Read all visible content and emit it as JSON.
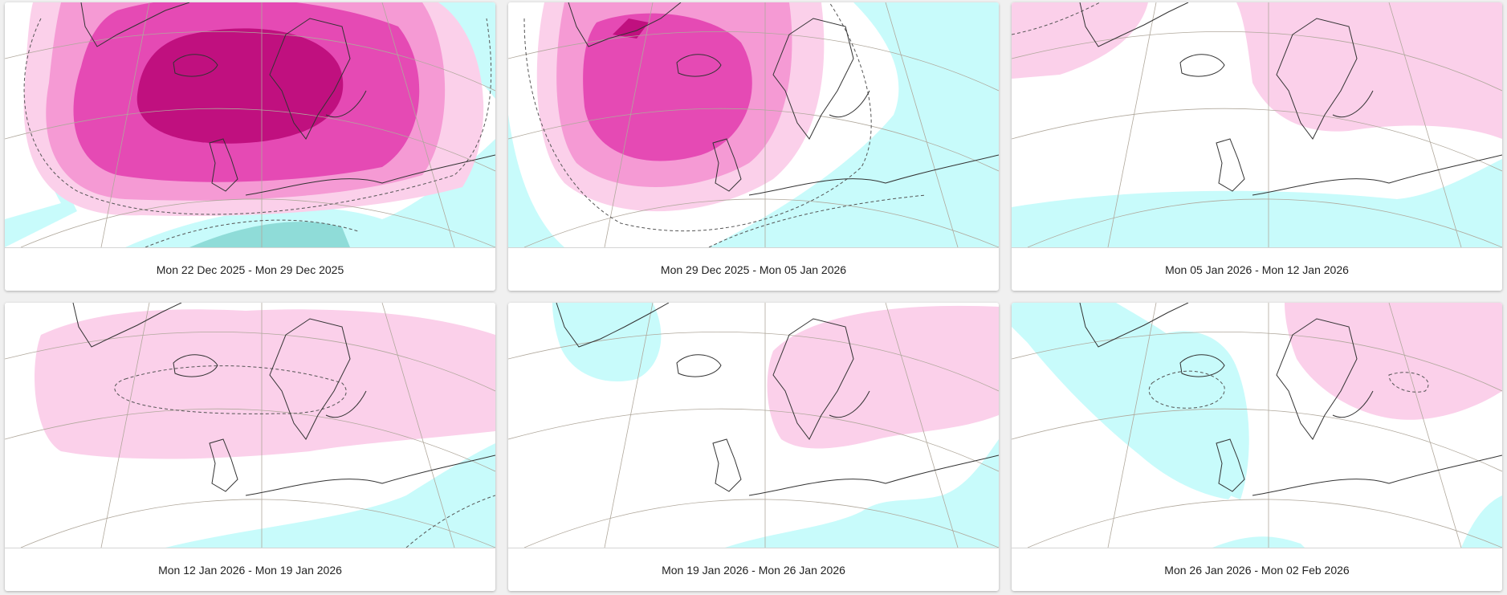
{
  "panels": [
    {
      "label": "Mon 22 Dec 2025 - Mon 29 Dec 2025"
    },
    {
      "label": "Mon 29 Dec 2025 - Mon 05 Jan 2026"
    },
    {
      "label": "Mon 05 Jan 2026 - Mon 12 Jan 2026"
    },
    {
      "label": "Mon 12 Jan 2026 - Mon 19 Jan 2026"
    },
    {
      "label": "Mon 19 Jan 2026 - Mon 26 Jan 2026"
    },
    {
      "label": "Mon 26 Jan 2026 - Mon 02 Feb 2026"
    }
  ],
  "colors": {
    "pos1": "#fbd0ea",
    "pos2": "#f59ad4",
    "pos3": "#e54ab4",
    "pos4": "#c0107f",
    "neg1": "#c8fbfb",
    "neg2": "#8fdcd8",
    "land_outline": "#333333",
    "graticule": "#b0a89c"
  }
}
